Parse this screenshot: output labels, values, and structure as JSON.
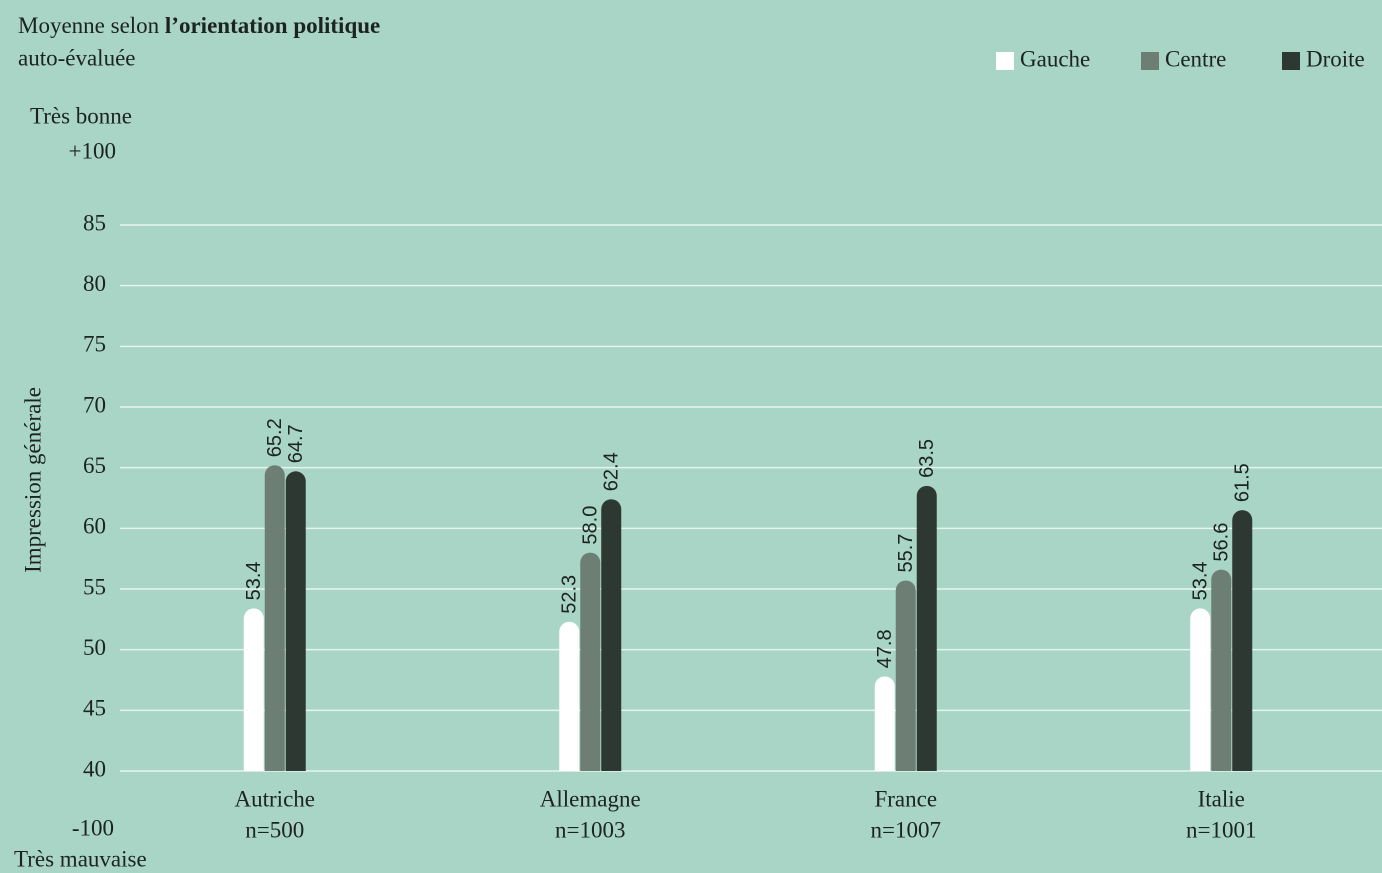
{
  "chart_data": {
    "type": "bar",
    "title": "Moyenne selon",
    "title_bold": "l’orientation politique",
    "subtitle": "auto-évaluée",
    "y_label": "Impression générale",
    "top_caption": "Très bonne",
    "top_label": "+100",
    "bottom_label": "-100",
    "bottom_caption": "Très mauvaise",
    "categories": [
      "Autriche",
      "Allemagne",
      "France",
      "Italie"
    ],
    "category_notes": [
      "n=500",
      "n=1003",
      "n=1007",
      "n=1001"
    ],
    "series": [
      {
        "name": "Gauche",
        "color": "#ffffff",
        "values": [
          53.4,
          52.3,
          47.8,
          53.4
        ],
        "value_labels": [
          "53.4",
          "52.3",
          "47.8",
          "53.4"
        ]
      },
      {
        "name": "Centre",
        "color": "#6d7f75",
        "values": [
          65.2,
          58.0,
          55.7,
          56.6
        ],
        "value_labels": [
          "65.2",
          "58.0",
          "55.7",
          "56.6"
        ]
      },
      {
        "name": "Droite",
        "color": "#2e3833",
        "values": [
          64.7,
          62.4,
          63.5,
          61.5
        ],
        "value_labels": [
          "64.7",
          "62.4",
          "63.5",
          "61.5"
        ]
      }
    ],
    "ylim": [
      40,
      85
    ],
    "yticks": [
      40,
      45,
      50,
      55,
      60,
      65,
      70,
      75,
      80,
      85
    ],
    "grid": true
  }
}
